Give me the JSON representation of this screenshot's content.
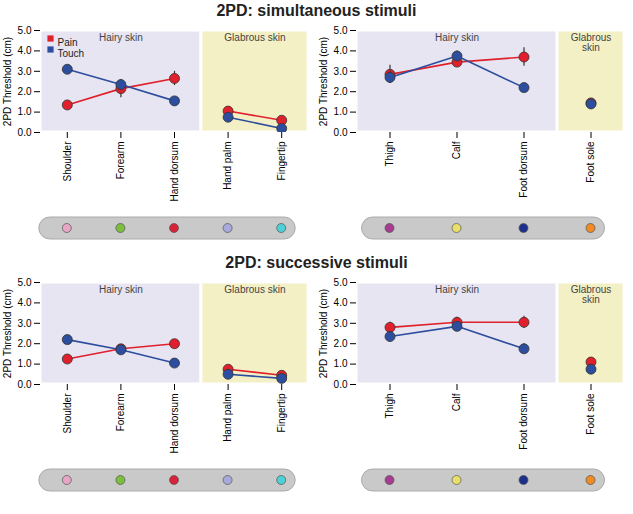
{
  "chart_data": [
    {
      "type": "line",
      "title": "2PD: simultaneous stimuli",
      "ylabel": "2PD Threshold (cm)",
      "categories": [
        "Shoulder",
        "Forearm",
        "Hand dorsum",
        "Hand palm",
        "Fingertip"
      ],
      "regions": [
        {
          "name": "Hairy skin",
          "categories": [
            "Shoulder",
            "Forearm",
            "Hand dorsum"
          ],
          "color": "#e7e5f1"
        },
        {
          "name": "Glabrous skin",
          "categories": [
            "Hand palm",
            "Fingertip"
          ],
          "color": "#f4f0c6"
        }
      ],
      "series": [
        {
          "name": "Pain",
          "color": "#e0202c",
          "values": [
            1.35,
            2.15,
            2.65,
            1.05,
            0.6
          ],
          "errors": [
            0.1,
            0.45,
            0.35,
            0.15,
            0.1
          ]
        },
        {
          "name": "Touch",
          "color": "#2d4d9e",
          "values": [
            3.1,
            2.35,
            1.55,
            0.75,
            0.2
          ],
          "errors": [
            0.2,
            0.2,
            0.1,
            0.1,
            0.1
          ]
        }
      ],
      "ylim": [
        0,
        5
      ],
      "yticks": [
        0,
        1,
        2,
        3,
        4,
        5
      ],
      "legend": "top-left",
      "marker": "circle"
    },
    {
      "type": "line",
      "ylabel": "2PD Threshold (cm)",
      "categories": [
        "Thigh",
        "Calf",
        "Foot dorsum",
        "Foot sole"
      ],
      "regions": [
        {
          "name": "Hairy skin",
          "categories": [
            "Thigh",
            "Calf",
            "Foot dorsum"
          ],
          "color": "#e7e5f1"
        },
        {
          "name": "Glabrous skin",
          "categories": [
            "Foot sole"
          ],
          "color": "#f4f0c6"
        }
      ],
      "series": [
        {
          "name": "Pain",
          "color": "#e0202c",
          "values": [
            2.85,
            3.45,
            3.7,
            1.45
          ],
          "errors": [
            0.45,
            0.15,
            0.45,
            0.1
          ]
        },
        {
          "name": "Touch",
          "color": "#2d4d9e",
          "values": [
            2.7,
            3.75,
            2.2,
            1.4
          ],
          "errors": [
            0.3,
            0.25,
            0.15,
            0.1
          ]
        }
      ],
      "ylim": [
        0,
        5
      ],
      "yticks": [
        0,
        1,
        2,
        3,
        4,
        5
      ],
      "marker": "circle"
    },
    {
      "type": "line",
      "title": "2PD: successive stimuli",
      "ylabel": "2PD Threshold (cm)",
      "categories": [
        "Shoulder",
        "Forearm",
        "Hand dorsum",
        "Hand palm",
        "Fingertip"
      ],
      "regions": [
        {
          "name": "Hairy skin",
          "categories": [
            "Shoulder",
            "Forearm",
            "Hand dorsum"
          ],
          "color": "#e7e5f1"
        },
        {
          "name": "Glabrous skin",
          "categories": [
            "Hand palm",
            "Fingertip"
          ],
          "color": "#f4f0c6"
        }
      ],
      "series": [
        {
          "name": "Pain",
          "color": "#e0202c",
          "values": [
            1.25,
            1.75,
            2.0,
            0.75,
            0.45
          ],
          "errors": [
            0.1,
            0.1,
            0.2,
            0.1,
            0.1
          ]
        },
        {
          "name": "Touch",
          "color": "#2d4d9e",
          "values": [
            2.2,
            1.7,
            1.05,
            0.5,
            0.3
          ],
          "errors": [
            0.2,
            0.1,
            0.1,
            0.05,
            0.05
          ]
        }
      ],
      "ylim": [
        0,
        5
      ],
      "yticks": [
        0,
        1,
        2,
        3,
        4,
        5
      ],
      "marker": "circle"
    },
    {
      "type": "line",
      "ylabel": "2PD Threshold (cm)",
      "categories": [
        "Thigh",
        "Calf",
        "Foot dorsum",
        "Foot sole"
      ],
      "regions": [
        {
          "name": "Hairy skin",
          "categories": [
            "Thigh",
            "Calf",
            "Foot dorsum"
          ],
          "color": "#e7e5f1"
        },
        {
          "name": "Glabrous skin",
          "categories": [
            "Foot sole"
          ],
          "color": "#f4f0c6"
        }
      ],
      "series": [
        {
          "name": "Pain",
          "color": "#e0202c",
          "values": [
            2.8,
            3.05,
            3.05,
            1.1
          ],
          "errors": [
            0.25,
            0.25,
            0.3,
            0.15
          ]
        },
        {
          "name": "Touch",
          "color": "#2d4d9e",
          "values": [
            2.35,
            2.85,
            1.75,
            0.75
          ],
          "errors": [
            0.25,
            0.2,
            0.25,
            0.05
          ]
        }
      ],
      "ylim": [
        0,
        5
      ],
      "yticks": [
        0,
        1,
        2,
        3,
        4,
        5
      ],
      "marker": "circle"
    }
  ]
}
